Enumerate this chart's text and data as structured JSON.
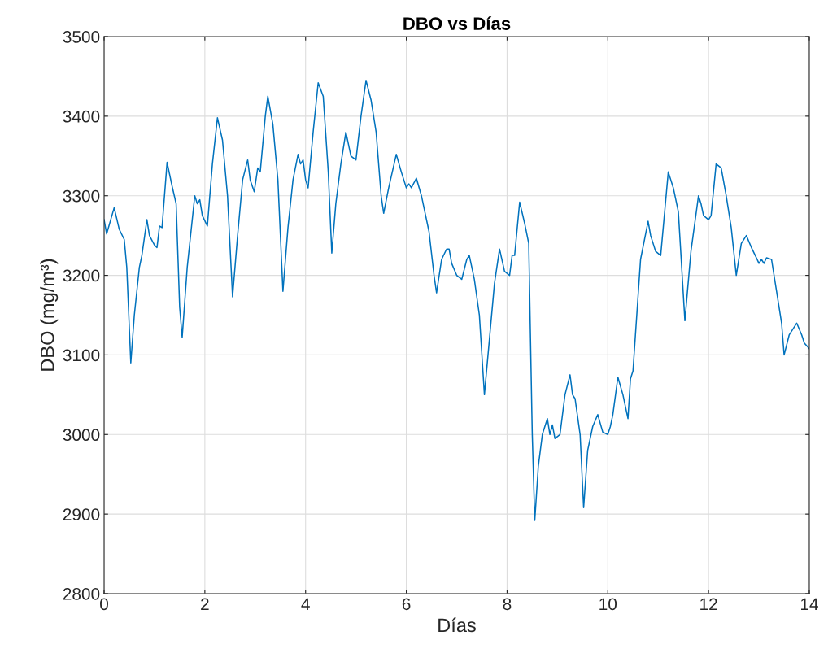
{
  "chart_data": {
    "type": "line",
    "title": "DBO vs Días",
    "xlabel": "Días",
    "ylabel": "DBO (mg/m³)",
    "xlim": [
      0,
      14
    ],
    "xticks": [
      0,
      2,
      4,
      6,
      8,
      10,
      12,
      14
    ],
    "ylim": [
      2800,
      3500
    ],
    "yticks": [
      2800,
      2900,
      3000,
      3100,
      3200,
      3300,
      3400,
      3500
    ],
    "grid": true,
    "series": [
      {
        "color": "#0072bd",
        "x": [
          0,
          0.05,
          0.2,
          0.3,
          0.4,
          0.45,
          0.53,
          0.6,
          0.7,
          0.75,
          0.85,
          0.9,
          1.0,
          1.05,
          1.1,
          1.15,
          1.25,
          1.35,
          1.43,
          1.5,
          1.55,
          1.65,
          1.8,
          1.85,
          1.9,
          1.95,
          2.05,
          2.15,
          2.25,
          2.35,
          2.45,
          2.55,
          2.65,
          2.75,
          2.85,
          2.9,
          2.98,
          3.05,
          3.1,
          3.2,
          3.25,
          3.35,
          3.45,
          3.55,
          3.65,
          3.75,
          3.85,
          3.9,
          3.95,
          4.0,
          4.05,
          4.15,
          4.25,
          4.35,
          4.45,
          4.52,
          4.6,
          4.7,
          4.8,
          4.85,
          4.9,
          5.0,
          5.1,
          5.2,
          5.3,
          5.4,
          5.5,
          5.55,
          5.65,
          5.8,
          5.9,
          6.0,
          6.05,
          6.1,
          6.2,
          6.3,
          6.45,
          6.55,
          6.6,
          6.7,
          6.8,
          6.85,
          6.9,
          7.0,
          7.1,
          7.2,
          7.25,
          7.35,
          7.45,
          7.55,
          7.65,
          7.75,
          7.85,
          7.95,
          8.05,
          8.1,
          8.15,
          8.25,
          8.35,
          8.43,
          8.5,
          8.55,
          8.62,
          8.7,
          8.8,
          8.85,
          8.9,
          8.95,
          9.05,
          9.15,
          9.25,
          9.3,
          9.35,
          9.45,
          9.52,
          9.6,
          9.7,
          9.8,
          9.9,
          10.0,
          10.05,
          10.1,
          10.2,
          10.3,
          10.4,
          10.45,
          10.5,
          10.65,
          10.8,
          10.85,
          10.95,
          11.05,
          11.2,
          11.3,
          11.4,
          11.53,
          11.65,
          11.8,
          11.85,
          11.9,
          12.0,
          12.05,
          12.15,
          12.25,
          12.35,
          12.45,
          12.55,
          12.65,
          12.75,
          12.85,
          12.95,
          13.0,
          13.05,
          13.1,
          13.15,
          13.25,
          13.35,
          13.45,
          13.5,
          13.6,
          13.75,
          13.85,
          13.9,
          14.0
        ],
        "values": [
          3270,
          3252,
          3285,
          3258,
          3245,
          3210,
          3090,
          3150,
          3210,
          3225,
          3270,
          3250,
          3238,
          3235,
          3262,
          3260,
          3342,
          3312,
          3290,
          3160,
          3122,
          3210,
          3300,
          3290,
          3295,
          3275,
          3262,
          3340,
          3398,
          3370,
          3300,
          3173,
          3250,
          3320,
          3345,
          3320,
          3305,
          3335,
          3330,
          3400,
          3425,
          3390,
          3320,
          3180,
          3260,
          3320,
          3352,
          3340,
          3345,
          3320,
          3310,
          3380,
          3442,
          3425,
          3330,
          3228,
          3290,
          3340,
          3380,
          3365,
          3350,
          3345,
          3400,
          3445,
          3420,
          3380,
          3300,
          3278,
          3310,
          3352,
          3330,
          3310,
          3315,
          3310,
          3322,
          3300,
          3255,
          3200,
          3178,
          3220,
          3233,
          3233,
          3215,
          3200,
          3195,
          3220,
          3225,
          3195,
          3150,
          3050,
          3120,
          3190,
          3233,
          3205,
          3200,
          3225,
          3225,
          3292,
          3265,
          3240,
          3000,
          2892,
          2960,
          3000,
          3020,
          3000,
          3012,
          2995,
          3000,
          3050,
          3075,
          3050,
          3045,
          3000,
          2908,
          2980,
          3010,
          3025,
          3003,
          3000,
          3010,
          3025,
          3072,
          3050,
          3020,
          3070,
          3080,
          3220,
          3268,
          3250,
          3230,
          3225,
          3330,
          3310,
          3280,
          3143,
          3230,
          3300,
          3290,
          3275,
          3270,
          3275,
          3340,
          3335,
          3300,
          3260,
          3200,
          3240,
          3250,
          3235,
          3222,
          3215,
          3220,
          3215,
          3222,
          3220,
          3180,
          3140,
          3100,
          3125,
          3140,
          3125,
          3115,
          3108
        ]
      }
    ]
  }
}
